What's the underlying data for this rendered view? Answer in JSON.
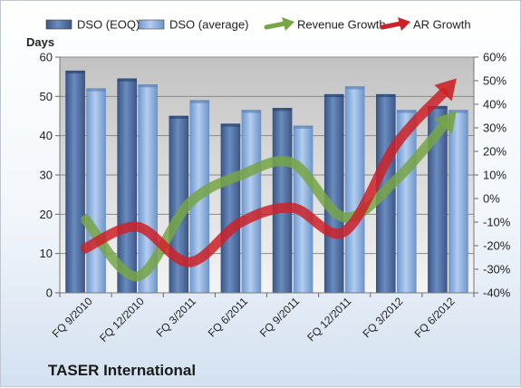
{
  "company": "TASER International",
  "chart_data": {
    "type": "bar",
    "categories": [
      "FQ 9/2010",
      "FQ 12/2010",
      "FQ 3/2011",
      "FQ 6/2011",
      "FQ 9/2011",
      "FQ 12/2011",
      "FQ 3/2012",
      "FQ 6/2012"
    ],
    "series": [
      {
        "name": "DSO (EOQ)",
        "type": "bar",
        "axis": "left",
        "color": "#4f6fa0",
        "values": [
          56.5,
          54.5,
          45,
          43,
          47,
          50.5,
          50.5,
          47.5
        ]
      },
      {
        "name": "DSO (average)",
        "type": "bar",
        "axis": "left",
        "color": "#8fb3e3",
        "values": [
          52,
          53,
          49,
          46.5,
          42.5,
          52.5,
          46.5,
          46.5
        ]
      },
      {
        "name": "Revenue Growth",
        "type": "line",
        "axis": "right",
        "color": "#77a546",
        "values": [
          -9,
          -33,
          -2,
          10,
          15,
          -8,
          8,
          33
        ]
      },
      {
        "name": "AR Growth",
        "type": "line",
        "axis": "right",
        "color": "#cc2127",
        "values": [
          -21,
          -12,
          -27,
          -10,
          -4,
          -14,
          23,
          47
        ]
      }
    ],
    "ylabel": "Days",
    "ylim": [
      0,
      60
    ],
    "yticks": [
      "0",
      "10",
      "20",
      "30",
      "40",
      "50",
      "60"
    ],
    "y2lim": [
      -40,
      60
    ],
    "y2ticks": [
      "-40%",
      "-30%",
      "-20%",
      "-10%",
      "0%",
      "10%",
      "20%",
      "30%",
      "40%",
      "50%",
      "60%"
    ],
    "grid": true,
    "legend": "top"
  }
}
